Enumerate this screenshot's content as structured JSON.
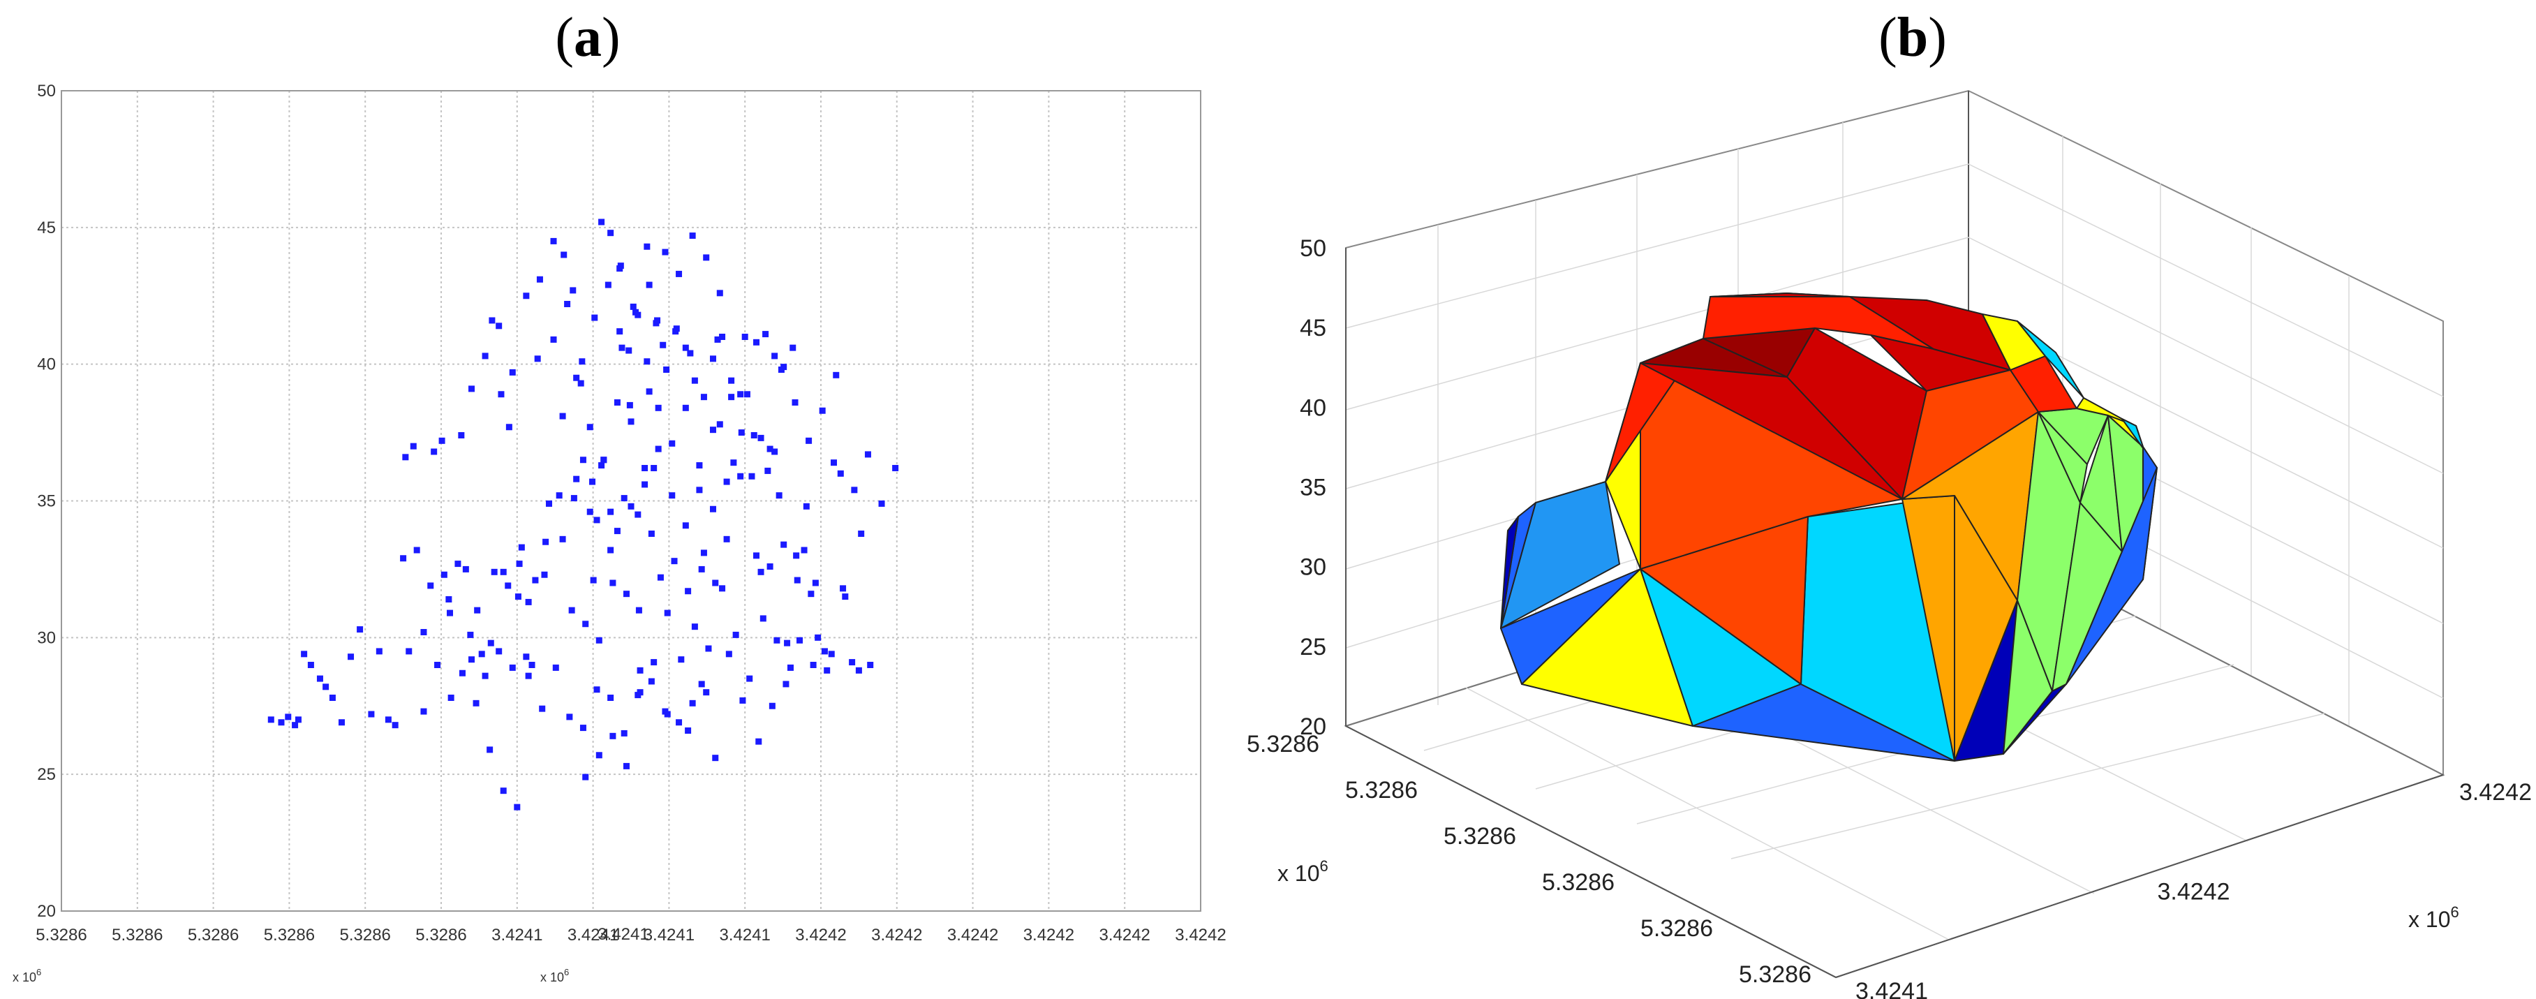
{
  "figure": {
    "panel_a_label": {
      "open": "(",
      "letter": "a",
      "close": ")"
    },
    "panel_b_label": {
      "open": "(",
      "letter": "b",
      "close": ")"
    }
  },
  "chart_data": [
    {
      "type": "scatter",
      "panel": "a",
      "marker_color": "#1a1aff",
      "grid": true,
      "ylim": [
        20,
        50
      ],
      "y_ticks": [
        "20",
        "25",
        "30",
        "35",
        "40",
        "45",
        "50"
      ],
      "x_tick_labels": [
        "5.3286",
        "5.3286",
        "5.3286",
        "5.3286",
        "5.3286",
        "5.3286",
        "3.4241",
        "3.4241",
        "3.4241",
        "3.4241",
        "3.4242",
        "3.4242",
        "3.4242",
        "3.4242",
        "3.4242",
        "3.4242"
      ],
      "x_tick_label_overlap": "3.4241",
      "x_exponent_left": "x 10",
      "x_exponent_left_power": "6",
      "x_exponent_mid": "x 10",
      "x_exponent_mid_power": "6",
      "points_x_fraction": [
        0.184,
        0.193,
        0.199,
        0.205,
        0.208,
        0.213,
        0.219,
        0.227,
        0.232,
        0.238,
        0.246,
        0.254,
        0.262,
        0.272,
        0.279,
        0.287,
        0.293,
        0.302,
        0.309,
        0.318,
        0.327,
        0.334,
        0.341,
        0.351,
        0.359,
        0.369,
        0.378,
        0.386,
        0.393,
        0.402,
        0.41,
        0.418,
        0.424,
        0.432,
        0.441,
        0.449,
        0.457,
        0.467,
        0.474,
        0.482,
        0.491,
        0.499,
        0.507,
        0.516,
        0.523,
        0.531,
        0.539,
        0.548,
        0.556,
        0.564,
        0.572,
        0.58,
        0.588,
        0.597,
        0.606,
        0.614,
        0.622,
        0.63,
        0.637,
        0.645,
        0.654,
        0.662,
        0.67,
        0.678,
        0.686,
        0.694,
        0.702,
        0.71,
        0.305,
        0.318,
        0.33,
        0.342,
        0.355,
        0.365,
        0.377,
        0.388,
        0.401,
        0.413,
        0.425,
        0.437,
        0.448,
        0.46,
        0.472,
        0.484,
        0.496,
        0.508,
        0.52,
        0.532,
        0.544,
        0.556,
        0.568,
        0.58,
        0.592,
        0.604,
        0.616,
        0.628,
        0.64,
        0.652,
        0.664,
        0.676,
        0.688,
        0.7,
        0.38,
        0.392,
        0.404,
        0.416,
        0.428,
        0.44,
        0.452,
        0.464,
        0.476,
        0.488,
        0.5,
        0.512,
        0.524,
        0.536,
        0.548,
        0.56,
        0.572,
        0.584,
        0.596,
        0.608,
        0.62,
        0.632,
        0.644,
        0.656,
        0.668,
        0.68,
        0.36,
        0.372,
        0.384,
        0.396,
        0.408,
        0.42,
        0.432,
        0.444,
        0.456,
        0.468,
        0.48,
        0.492,
        0.504,
        0.516,
        0.528,
        0.54,
        0.552,
        0.564,
        0.576,
        0.588,
        0.6,
        0.612,
        0.624,
        0.636,
        0.648,
        0.41,
        0.422,
        0.434,
        0.446,
        0.458,
        0.47,
        0.482,
        0.494,
        0.506,
        0.518,
        0.53,
        0.542,
        0.554,
        0.566,
        0.578,
        0.59,
        0.602,
        0.614,
        0.626,
        0.44,
        0.452,
        0.464,
        0.476,
        0.488,
        0.5,
        0.512,
        0.524,
        0.536,
        0.548,
        0.56,
        0.572,
        0.584,
        0.596,
        0.47,
        0.482,
        0.494,
        0.506,
        0.518,
        0.53,
        0.542,
        0.554,
        0.566,
        0.578,
        0.49,
        0.502,
        0.514,
        0.526,
        0.538,
        0.55,
        0.562,
        0.574,
        0.34,
        0.352,
        0.364,
        0.376,
        0.388,
        0.4,
        0.46,
        0.472,
        0.484,
        0.496,
        0.508,
        0.52,
        0.532,
        0.55,
        0.562,
        0.574,
        0.586,
        0.598,
        0.61,
        0.622,
        0.634,
        0.646,
        0.658,
        0.3,
        0.312,
        0.324,
        0.336,
        0.348,
        0.36,
        0.372,
        0.384,
        0.396,
        0.408,
        0.66,
        0.672,
        0.684,
        0.696,
        0.708,
        0.72,
        0.732,
        0.45,
        0.458,
        0.466,
        0.474,
        0.482,
        0.49,
        0.498,
        0.506,
        0.514,
        0.522,
        0.61,
        0.618,
        0.626,
        0.634,
        0.642,
        0.65,
        0.658,
        0.666,
        0.674,
        0.682
      ],
      "points_y": [
        27.0,
        26.9,
        27.1,
        26.8,
        27.0,
        29.4,
        29.0,
        28.5,
        28.2,
        27.8,
        26.9,
        29.3,
        30.3,
        27.2,
        29.5,
        27.0,
        26.8,
        36.6,
        37.0,
        27.3,
        36.8,
        37.2,
        30.9,
        37.4,
        30.1,
        29.4,
        41.6,
        38.9,
        37.7,
        32.7,
        31.3,
        40.2,
        32.3,
        44.5,
        44.0,
        42.7,
        40.1,
        32.1,
        45.2,
        44.8,
        43.6,
        38.5,
        31.0,
        42.9,
        41.6,
        39.8,
        41.2,
        40.6,
        39.4,
        33.1,
        40.2,
        41.0,
        38.8,
        37.5,
        35.9,
        32.4,
        36.9,
        35.2,
        29.8,
        33.0,
        34.8,
        32.0,
        29.5,
        36.4,
        31.8,
        29.1,
        33.8,
        29.0,
        29.5,
        30.2,
        29.0,
        27.8,
        32.5,
        31.0,
        29.8,
        32.4,
        31.5,
        29.0,
        33.5,
        35.2,
        31.0,
        30.5,
        29.9,
        32.0,
        31.6,
        28.8,
        36.2,
        30.9,
        29.2,
        30.4,
        29.6,
        31.8,
        30.1,
        28.5,
        30.7,
        29.9,
        28.9,
        33.2,
        30.0,
        29.4,
        31.5,
        28.8,
        32.4,
        31.9,
        33.3,
        32.1,
        34.9,
        33.6,
        35.8,
        34.6,
        36.5,
        33.9,
        34.8,
        35.6,
        36.9,
        35.2,
        38.4,
        36.3,
        37.6,
        35.7,
        38.9,
        37.4,
        36.1,
        39.8,
        38.6,
        37.2,
        38.3,
        39.6,
        39.1,
        40.3,
        41.4,
        39.7,
        42.5,
        43.1,
        40.9,
        42.2,
        39.3,
        41.7,
        42.9,
        40.6,
        41.9,
        39.0,
        40.7,
        41.3,
        40.4,
        38.8,
        40.9,
        39.4,
        41.0,
        26.2,
        27.5,
        28.3,
        29.9,
        28.6,
        27.4,
        28.9,
        27.1,
        26.7,
        28.1,
        27.8,
        26.5,
        27.9,
        28.4,
        27.3,
        26.9,
        27.6,
        28.0,
        37.8,
        36.4,
        38.9,
        37.3,
        36.8,
        38.1,
        39.5,
        37.7,
        36.5,
        38.6,
        37.9,
        36.2,
        38.4,
        37.1,
        34.1,
        35.4,
        34.7,
        33.6,
        35.9,
        34.3,
        33.2,
        35.1,
        34.5,
        33.8,
        44.1,
        43.3,
        44.7,
        43.9,
        42.6,
        43.5,
        42.1,
        44.3,
        32.2,
        32.8,
        31.7,
        32.5,
        32.0,
        31.4,
        28.7,
        27.6,
        25.9,
        24.4,
        23.8,
        24.9,
        25.7,
        26.4,
        25.3,
        28.0,
        29.1,
        27.2,
        26.6,
        28.3,
        25.6,
        29.4,
        27.7,
        33.0,
        32.6,
        33.4,
        32.1,
        31.6,
        32.9,
        33.2,
        31.9,
        32.3,
        32.7,
        29.2,
        28.6,
        29.5,
        28.9,
        29.3,
        29.0,
        28.8,
        36.0,
        35.4,
        36.7,
        34.9,
        36.2,
        35.1,
        36.5,
        35.7,
        36.3,
        34.6,
        41.2,
        40.5,
        41.8,
        40.1,
        41.5,
        40.8,
        41.1,
        40.3,
        39.9,
        40.6
      ]
    },
    {
      "type": "3d-surface",
      "panel": "b",
      "zlim": [
        20,
        50
      ],
      "z_ticks": [
        "20",
        "25",
        "30",
        "35",
        "40",
        "45",
        "50"
      ],
      "x_ticks": [
        "5.3286",
        "5.3286",
        "5.3286",
        "5.3286",
        "5.3286",
        "5.3286"
      ],
      "x_exponent": "x 10",
      "x_exponent_power": "6",
      "y_ticks": [
        "3.4241",
        "3.4242",
        "3.4242"
      ],
      "y_exponent": "x 10",
      "y_exponent_power": "6",
      "face_colors": [
        "#0000b8",
        "#1e63ff",
        "#2196f3",
        "#00d7ff",
        "#19e3ee",
        "#8cff6a",
        "#ffff00",
        "#ffa500",
        "#ff4500",
        "#ff2000",
        "#d00000",
        "#990000"
      ]
    }
  ]
}
